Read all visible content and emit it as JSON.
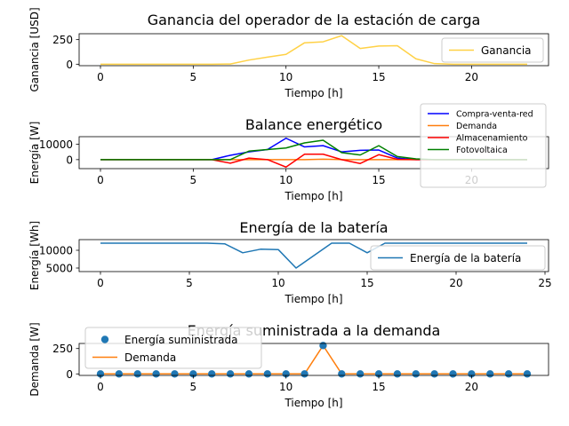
{
  "chart_data": [
    {
      "type": "line",
      "title": "Ganancia del operador de la estación de carga",
      "xlabel": "Tiempo [h]",
      "ylabel": "Ganancia [USD]",
      "xlim": [
        -1.15,
        24.15
      ],
      "ylim": [
        -15,
        310
      ],
      "xticks": [
        0,
        5,
        10,
        15,
        20
      ],
      "yticks": [
        0,
        250
      ],
      "legend_position": "lower-right",
      "x": [
        0,
        1,
        2,
        3,
        4,
        5,
        6,
        7,
        8,
        9,
        10,
        11,
        12,
        13,
        14,
        15,
        16,
        17,
        18,
        19,
        20,
        21,
        22,
        23
      ],
      "series": [
        {
          "name": "Ganancia",
          "color": "#ffd146",
          "style": "line",
          "values": [
            0,
            0,
            0,
            0,
            0,
            0,
            0,
            2,
            42,
            72,
            100,
            218,
            228,
            290,
            160,
            185,
            188,
            55,
            6,
            0,
            0,
            0,
            0,
            0
          ]
        }
      ]
    },
    {
      "type": "line",
      "title": "Balance energético",
      "xlabel": "Tiempo [h]",
      "ylabel": "Energía [W]",
      "xlim": [
        -1.15,
        24.15
      ],
      "ylim": [
        -5800,
        14800
      ],
      "xticks": [
        0,
        5,
        10,
        15,
        20
      ],
      "yticks": [
        0,
        10000
      ],
      "legend_position": "upper-right",
      "x": [
        0,
        1,
        2,
        3,
        4,
        5,
        6,
        7,
        8,
        9,
        10,
        11,
        12,
        13,
        14,
        15,
        16,
        17,
        18,
        19,
        20,
        21,
        22,
        23
      ],
      "series": [
        {
          "name": "Compra-venta-red",
          "color": "#0000ff",
          "style": "line",
          "values": [
            0,
            0,
            0,
            0,
            0,
            0,
            0,
            2800,
            5000,
            6500,
            13800,
            8200,
            9000,
            5000,
            6000,
            6200,
            1000,
            0,
            0,
            0,
            0,
            0,
            0,
            0
          ]
        },
        {
          "name": "Demanda",
          "color": "#ff7f0e",
          "style": "line",
          "values": [
            0,
            0,
            0,
            0,
            0,
            0,
            0,
            0,
            0,
            0,
            0,
            0,
            280,
            0,
            0,
            0,
            0,
            0,
            0,
            0,
            0,
            0,
            0,
            0
          ]
        },
        {
          "name": "Almacenamiento",
          "color": "#ff0000",
          "style": "line",
          "values": [
            0,
            0,
            0,
            0,
            0,
            0,
            0,
            -2300,
            1000,
            0,
            -4800,
            3500,
            3500,
            0,
            -2500,
            3200,
            200,
            0,
            0,
            0,
            0,
            0,
            0,
            0
          ]
        },
        {
          "name": "Fotovoltaica",
          "color": "#008000",
          "style": "line",
          "values": [
            0,
            0,
            0,
            0,
            0,
            0,
            0,
            0,
            5500,
            6500,
            7500,
            10800,
            12500,
            4500,
            3000,
            9000,
            2000,
            500,
            0,
            0,
            0,
            0,
            0,
            0
          ]
        }
      ]
    },
    {
      "type": "line",
      "title": "Energía de la batería",
      "xlabel": "Tiempo [h]",
      "ylabel": "Energía [Wh]",
      "xlim": [
        -1.2,
        25.2
      ],
      "ylim": [
        4000,
        13000
      ],
      "xticks": [
        0,
        5,
        10,
        15,
        20,
        25
      ],
      "yticks": [
        5000,
        10000
      ],
      "legend_position": "lower-right",
      "x": [
        0,
        1,
        2,
        3,
        4,
        5,
        6,
        7,
        8,
        9,
        10,
        11,
        12,
        13,
        14,
        15,
        16,
        17,
        18,
        19,
        20,
        21,
        22,
        23,
        24
      ],
      "series": [
        {
          "name": "Energía de la batería",
          "color": "#1f77b4",
          "style": "line",
          "values": [
            12000,
            12000,
            12000,
            12000,
            12000,
            12000,
            12000,
            11800,
            9300,
            10300,
            10200,
            5000,
            8500,
            12000,
            12000,
            9300,
            12000,
            12000,
            12000,
            12000,
            12000,
            12000,
            12000,
            12000,
            12000
          ]
        }
      ]
    },
    {
      "type": "line",
      "title": "Energía suministrada a la demanda",
      "xlabel": "Tiempo [h]",
      "ylabel": "Demanda [W]",
      "xlim": [
        -1.15,
        24.15
      ],
      "ylim": [
        -15,
        300
      ],
      "xticks": [
        0,
        5,
        10,
        15,
        20
      ],
      "yticks": [
        0,
        250
      ],
      "legend_position": "upper-left",
      "x": [
        0,
        1,
        2,
        3,
        4,
        5,
        6,
        7,
        8,
        9,
        10,
        11,
        12,
        13,
        14,
        15,
        16,
        17,
        18,
        19,
        20,
        21,
        22,
        23
      ],
      "series": [
        {
          "name": "Energía suministrada",
          "color": "#1f77b4",
          "style": "markers",
          "values": [
            0,
            0,
            0,
            0,
            0,
            0,
            0,
            0,
            0,
            0,
            0,
            0,
            280,
            0,
            0,
            0,
            0,
            0,
            0,
            0,
            0,
            0,
            0,
            0
          ]
        },
        {
          "name": "Demanda",
          "color": "#ff7f0e",
          "style": "line",
          "values": [
            0,
            0,
            0,
            0,
            0,
            0,
            0,
            0,
            0,
            0,
            0,
            0,
            280,
            0,
            0,
            0,
            0,
            0,
            0,
            0,
            0,
            0,
            0,
            0
          ]
        }
      ]
    }
  ]
}
